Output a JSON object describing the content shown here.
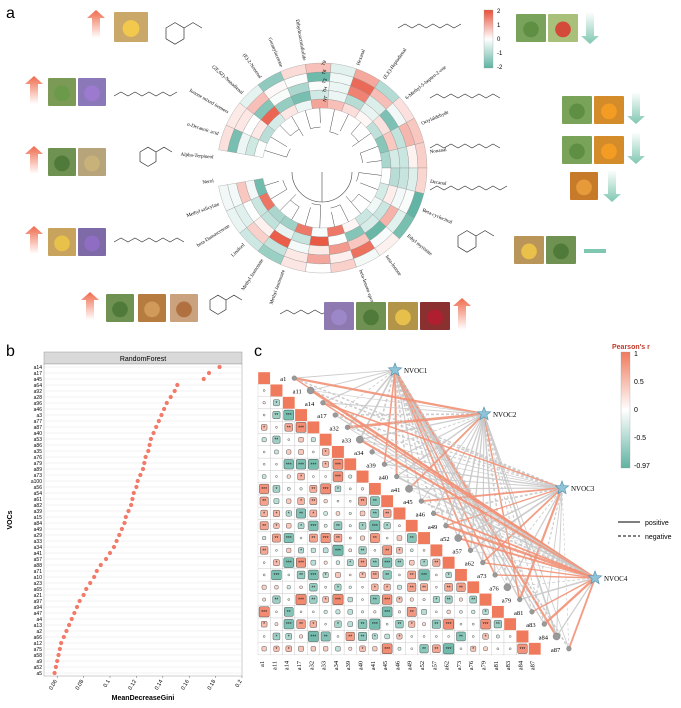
{
  "panel_labels": {
    "a": "a",
    "b": "b",
    "c": "c"
  },
  "panel_a": {
    "compounds_left": [
      "Dihydroactinidiolide",
      "Geranylacetone",
      "(E)-2-Nonenal",
      "(2E,6Z)-Nonadienal",
      "Ionone mixed isomers",
      "n-Decanoic acid",
      "Alpha-Terpineol",
      "Nerol",
      "Methyl salicylate",
      "beta-Damascenone",
      "Linalool",
      "Methyl Jasmonate",
      "Methyl Jasmonate"
    ],
    "compounds_right": [
      "Hexanal",
      "(E,E)-Heptadienal",
      "6-Methyl-5-hepten-2-one",
      "Octylaldehyde",
      "Nonanal",
      "Decanal",
      "Beta-cyclocitral",
      "Ethyl myristate",
      "beta-Ionone",
      "beta-Ionone epoxide"
    ],
    "track_labels": [
      "NT",
      "TH",
      "T3",
      "T6",
      "T9"
    ],
    "colorbar": {
      "max": "2",
      "mid1": "1",
      "zero": "0",
      "mid2": "-1",
      "min": "-2",
      "high": "#e8503a",
      "mid": "#ffffff",
      "low": "#5fb3a2"
    },
    "arrow_up_color": "#ef6a4c",
    "arrow_down_color": "#7fc7b0"
  },
  "chart_data": [
    {
      "type": "scatter",
      "title": "RandomForest",
      "xlabel": "MeanDecreaseGini",
      "ylabel": "VOCs",
      "xlim": [
        0.05,
        0.2
      ],
      "xticks": [
        "0.06",
        "0.08",
        "0.1",
        "0.12",
        "0.14",
        "0.16",
        "0.18",
        "0.2"
      ],
      "point_color": "#f17a68",
      "categories": [
        "a14",
        "a17",
        "a45",
        "a64",
        "a92",
        "a28",
        "a96",
        "a46",
        "a3",
        "a77",
        "a87",
        "a40",
        "a53",
        "a86",
        "a35",
        "a76",
        "a79",
        "a89",
        "a73",
        "a100",
        "a56",
        "a54",
        "a61",
        "a82",
        "a39",
        "a15",
        "a84",
        "a49",
        "a29",
        "a33",
        "a34",
        "a41",
        "a57",
        "a88",
        "a71",
        "a10",
        "a23",
        "a65",
        "a21",
        "a97",
        "a94",
        "a47",
        "a4",
        "a13",
        "a2",
        "a66",
        "a12",
        "a75",
        "a58",
        "a9",
        "a52",
        "a5"
      ],
      "values": [
        0.183,
        0.175,
        0.171,
        0.151,
        0.149,
        0.146,
        0.143,
        0.141,
        0.139,
        0.137,
        0.135,
        0.133,
        0.131,
        0.13,
        0.129,
        0.127,
        0.126,
        0.125,
        0.123,
        0.121,
        0.12,
        0.118,
        0.117,
        0.116,
        0.114,
        0.112,
        0.111,
        0.109,
        0.107,
        0.105,
        0.103,
        0.1,
        0.097,
        0.093,
        0.09,
        0.088,
        0.085,
        0.082,
        0.08,
        0.077,
        0.075,
        0.073,
        0.071,
        0.069,
        0.067,
        0.065,
        0.063,
        0.062,
        0.061,
        0.06,
        0.059,
        0.058
      ]
    },
    {
      "type": "heatmap",
      "title": "Pearson's r",
      "variables": [
        "a1",
        "a11",
        "a14",
        "a17",
        "a32",
        "a33",
        "a34",
        "a39",
        "a40",
        "a41",
        "a45",
        "a46",
        "a49",
        "a52",
        "a57",
        "a62",
        "a73",
        "a76",
        "a79",
        "a81",
        "a83",
        "a84",
        "a87"
      ],
      "nodes": [
        "NVOC1",
        "NVOC2",
        "NVOC3",
        "NVOC4"
      ],
      "colorbar": {
        "max": "1",
        "v1": "0.5",
        "v2": "0",
        "v3": "-0.5",
        "min": "-0.97",
        "pos_color": "#f07a5c",
        "neg_color": "#5fb3a2"
      },
      "legend": {
        "positive": "positive",
        "negative": "negative"
      },
      "significance_marks": [
        "*",
        "**",
        "***"
      ]
    }
  ]
}
